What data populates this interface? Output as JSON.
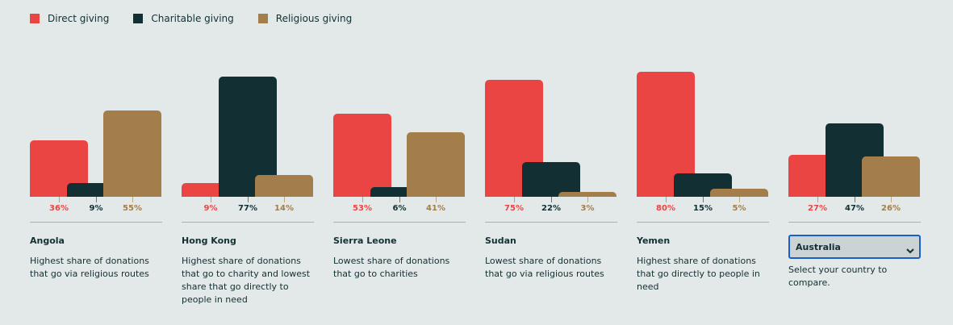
{
  "legend": [
    {
      "label": "Direct giving",
      "color": "#ea4542"
    },
    {
      "label": "Charitable giving",
      "color": "#123033"
    },
    {
      "label": "Religious giving",
      "color": "#a37d4a"
    }
  ],
  "chart_data": {
    "type": "bar",
    "series_names": [
      "Direct giving",
      "Charitable giving",
      "Religious giving"
    ],
    "ylim": [
      0,
      80
    ],
    "groups": [
      {
        "country": "Angola",
        "desc": "Highest share of donations that go via religious routes",
        "values": [
          36,
          9,
          55
        ]
      },
      {
        "country": "Hong Kong",
        "desc": "Highest share of donations that go to charity and lowest share that go directly to people in need",
        "values": [
          9,
          77,
          14
        ]
      },
      {
        "country": "Sierra Leone",
        "desc": "Lowest share of donations that go to charities",
        "values": [
          53,
          6,
          41
        ]
      },
      {
        "country": "Sudan",
        "desc": "Lowest share of donations that go via religious routes",
        "values": [
          75,
          22,
          3
        ]
      },
      {
        "country": "Yemen",
        "desc": "Highest share of donations that go directly to people in need",
        "values": [
          80,
          15,
          5
        ]
      },
      {
        "country": "Australia",
        "desc": "Select your country to compare.",
        "values": [
          27,
          47,
          26
        ],
        "selector": true
      }
    ]
  }
}
